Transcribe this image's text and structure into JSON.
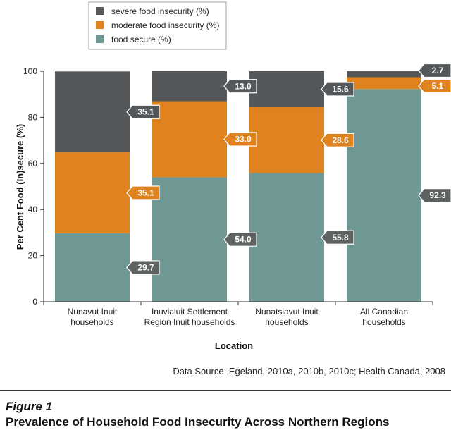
{
  "chart_data": {
    "type": "bar",
    "stacked": true,
    "orientation": "vertical",
    "categories": [
      [
        "Nunavut Inuit",
        "households"
      ],
      [
        "Inuvialuit Settlement",
        "Region Inuit households"
      ],
      [
        "Nunatsiavut Inuit",
        "households"
      ],
      [
        "All Canadian",
        "households"
      ]
    ],
    "series": [
      {
        "name": "food secure (%)",
        "color": "#6f9794",
        "tag_color": "#5e6261",
        "values": [
          29.7,
          54.0,
          55.8,
          92.3
        ],
        "labels": [
          "29.7",
          "54.0",
          "55.8",
          "92.3"
        ]
      },
      {
        "name": "moderate food insecurity (%)",
        "color": "#e0821e",
        "tag_color": "#e0821e",
        "values": [
          35.1,
          33.0,
          28.6,
          5.1
        ],
        "labels": [
          "35.1",
          "33.0",
          "28.6",
          "5.1"
        ]
      },
      {
        "name": "severe food insecurity (%)",
        "color": "#55585a",
        "tag_color": "#55585a",
        "values": [
          35.1,
          13.0,
          15.6,
          2.7
        ],
        "labels": [
          "35.1",
          "13.0",
          "15.6",
          "2.7"
        ]
      }
    ],
    "legend_order": [
      2,
      1,
      0
    ],
    "ylim": [
      0,
      100
    ],
    "yticks": [
      0,
      20,
      40,
      60,
      80,
      100
    ],
    "xlabel": "Location",
    "ylabel": "Per Cent Food (In)secure (%)",
    "legend_position": "top-left"
  },
  "source": "Data Source: Egeland, 2010a, 2010b, 2010c; Health Canada, 2008",
  "figure": {
    "label": "Figure 1",
    "title": "Prevalence of Household Food Insecurity Across Northern Regions"
  }
}
